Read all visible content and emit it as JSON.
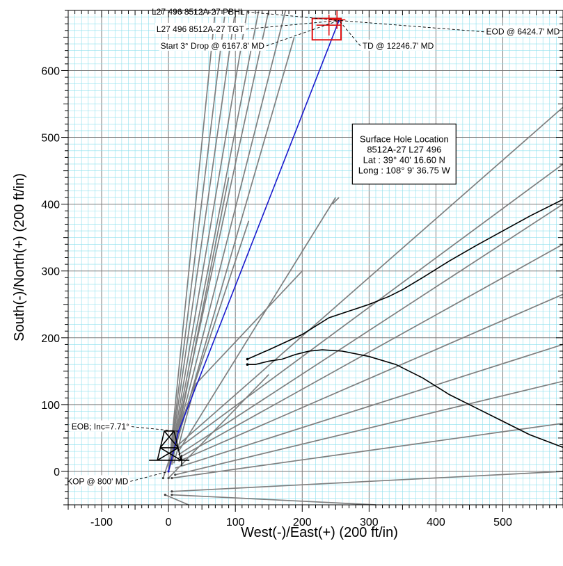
{
  "chart_data": {
    "type": "line",
    "title": "",
    "xlabel": "West(-)/East(+) (200 ft/in)",
    "ylabel": "South(-)/North(+) (200 ft/in)",
    "xlim": [
      -150,
      590
    ],
    "ylim": [
      -50,
      690
    ],
    "x_ticks": [
      -100,
      0,
      100,
      200,
      300,
      400,
      500
    ],
    "y_ticks": [
      0,
      100,
      200,
      300,
      400,
      500,
      600
    ],
    "x_tick_labels": [
      "-100",
      "0",
      "100",
      "200",
      "300",
      "400",
      "500"
    ],
    "y_tick_labels": [
      "0",
      "100",
      "200",
      "300",
      "400",
      "500",
      "600"
    ],
    "grid": true,
    "colors": {
      "minor_grid": "#8ee0ee",
      "major_grid": "#7a7a7a",
      "plan_line": "#1a1acc",
      "offset_wells": "#7f7f7f",
      "highlight_wells": "#000000",
      "target": "#e01010"
    },
    "series": [
      {
        "name": "",
        "role": "plan",
        "x": [
          0,
          15,
          255
        ],
        "y": [
          0,
          60,
          675
        ]
      },
      {
        "name": "",
        "role": "offset-well",
        "x": [
          0,
          70
        ],
        "y": [
          0,
          690
        ]
      },
      {
        "name": "",
        "role": "offset-well",
        "x": [
          0,
          85
        ],
        "y": [
          0,
          690
        ]
      },
      {
        "name": "",
        "role": "offset-well",
        "x": [
          0,
          100
        ],
        "y": [
          0,
          690
        ]
      },
      {
        "name": "",
        "role": "offset-well",
        "x": [
          0,
          118
        ],
        "y": [
          0,
          690
        ]
      },
      {
        "name": "",
        "role": "offset-well",
        "x": [
          0,
          135
        ],
        "y": [
          0,
          690
        ]
      },
      {
        "name": "",
        "role": "offset-well",
        "x": [
          0,
          150
        ],
        "y": [
          0,
          690
        ]
      },
      {
        "name": "",
        "role": "offset-well",
        "x": [
          0,
          175
        ],
        "y": [
          0,
          690
        ]
      },
      {
        "name": "",
        "role": "offset-well",
        "x": [
          0,
          188
        ],
        "y": [
          0,
          650
        ]
      },
      {
        "name": "",
        "role": "offset-well",
        "x": [
          5,
          90
        ],
        "y": [
          10,
          440
        ]
      },
      {
        "name": "",
        "role": "offset-well",
        "x": [
          8,
          40,
          200
        ],
        "y": [
          12,
          130,
          300
        ]
      },
      {
        "name": "",
        "role": "offset-well",
        "x": [
          -8,
          120
        ],
        "y": [
          -10,
          375
        ]
      },
      {
        "name": "",
        "role": "offset-well",
        "x": [
          15,
          250
        ],
        "y": [
          30,
          410
        ]
      },
      {
        "name": "",
        "role": "offset-well",
        "x": [
          15,
          590
        ],
        "y": [
          40,
          545
        ]
      },
      {
        "name": "",
        "role": "offset-well",
        "x": [
          15,
          590
        ],
        "y": [
          35,
          460
        ]
      },
      {
        "name": "",
        "role": "offset-well",
        "x": [
          15,
          590
        ],
        "y": [
          25,
          400
        ]
      },
      {
        "name": "",
        "role": "offset-well",
        "x": [
          15,
          590
        ],
        "y": [
          20,
          340
        ]
      },
      {
        "name": "",
        "role": "offset-well",
        "x": [
          15,
          590
        ],
        "y": [
          15,
          265
        ]
      },
      {
        "name": "",
        "role": "offset-well",
        "x": [
          10,
          590
        ],
        "y": [
          5,
          190
        ]
      },
      {
        "name": "",
        "role": "offset-well",
        "x": [
          10,
          590
        ],
        "y": [
          -5,
          135
        ]
      },
      {
        "name": "",
        "role": "offset-well",
        "x": [
          5,
          590
        ],
        "y": [
          -10,
          72
        ]
      },
      {
        "name": "",
        "role": "offset-well",
        "x": [
          5,
          590
        ],
        "y": [
          -30,
          0
        ]
      },
      {
        "name": "",
        "role": "offset-well",
        "x": [
          5,
          310
        ],
        "y": [
          -35,
          -50
        ]
      },
      {
        "name": "",
        "role": "offset-well",
        "x": [
          -5,
          30
        ],
        "y": [
          -35,
          -50
        ]
      },
      {
        "name": "",
        "role": "offset-well",
        "x": [
          0,
          150
        ],
        "y": [
          -10,
          145
        ]
      },
      {
        "name": "",
        "role": "offset-well",
        "x": [
          245,
          255
        ],
        "y": [
          400,
          410
        ]
      },
      {
        "name": "",
        "role": "highlight-well",
        "x": [
          118,
          150,
          200,
          240,
          270,
          300,
          330,
          350,
          380,
          420,
          460,
          500,
          540,
          590
        ],
        "y": [
          168,
          182,
          205,
          230,
          240,
          250,
          262,
          272,
          290,
          315,
          338,
          360,
          382,
          407
        ]
      },
      {
        "name": "",
        "role": "highlight-well",
        "x": [
          118,
          130,
          150,
          170,
          190,
          210,
          230,
          260,
          300,
          340,
          380,
          420,
          460,
          500,
          540,
          590
        ],
        "y": [
          160,
          160,
          165,
          168,
          175,
          180,
          182,
          180,
          172,
          160,
          140,
          115,
          95,
          75,
          55,
          36
        ]
      }
    ],
    "target_box": {
      "x": [
        215,
        258
      ],
      "y": [
        646,
        678
      ]
    },
    "rig_location": {
      "x": 0,
      "y": 0
    },
    "annotations": [
      {
        "text": "L27 496 8512A-27 PBHL",
        "x": 255,
        "y": 675,
        "anchor": "left",
        "label_x": -25,
        "label_y": 688
      },
      {
        "text": "L27 496 8512A-27 TGT",
        "x": 255,
        "y": 675,
        "anchor": "left",
        "label_x": -18,
        "label_y": 662
      },
      {
        "text": "Start 3° Drop @ 6167.8' MD",
        "x": 255,
        "y": 675,
        "anchor": "left",
        "label_x": -12,
        "label_y": 637
      },
      {
        "text": "EOD @ 6424.7' MD",
        "x": 255,
        "y": 675,
        "anchor": "left",
        "label_x": 475,
        "label_y": 658
      },
      {
        "text": "TD @ 12246.7' MD",
        "x": 255,
        "y": 675,
        "anchor": "left",
        "label_x": 290,
        "label_y": 637
      },
      {
        "text": "EOB; Inc=7.71°",
        "x": 15,
        "y": 60,
        "anchor": "left",
        "label_x": -145,
        "label_y": 67
      },
      {
        "text": "KOP @ 800' MD",
        "x": 0,
        "y": 0,
        "anchor": "left",
        "label_x": -152,
        "label_y": -15
      }
    ],
    "info_box": {
      "lines": [
        "Surface Hole Location",
        "8512A-27 L27 496",
        "Lat  :  39° 40' 16.60 N",
        "Long :  108° 9' 36.75 W"
      ],
      "x": [
        275,
        430
      ],
      "y": [
        430,
        520
      ]
    }
  }
}
